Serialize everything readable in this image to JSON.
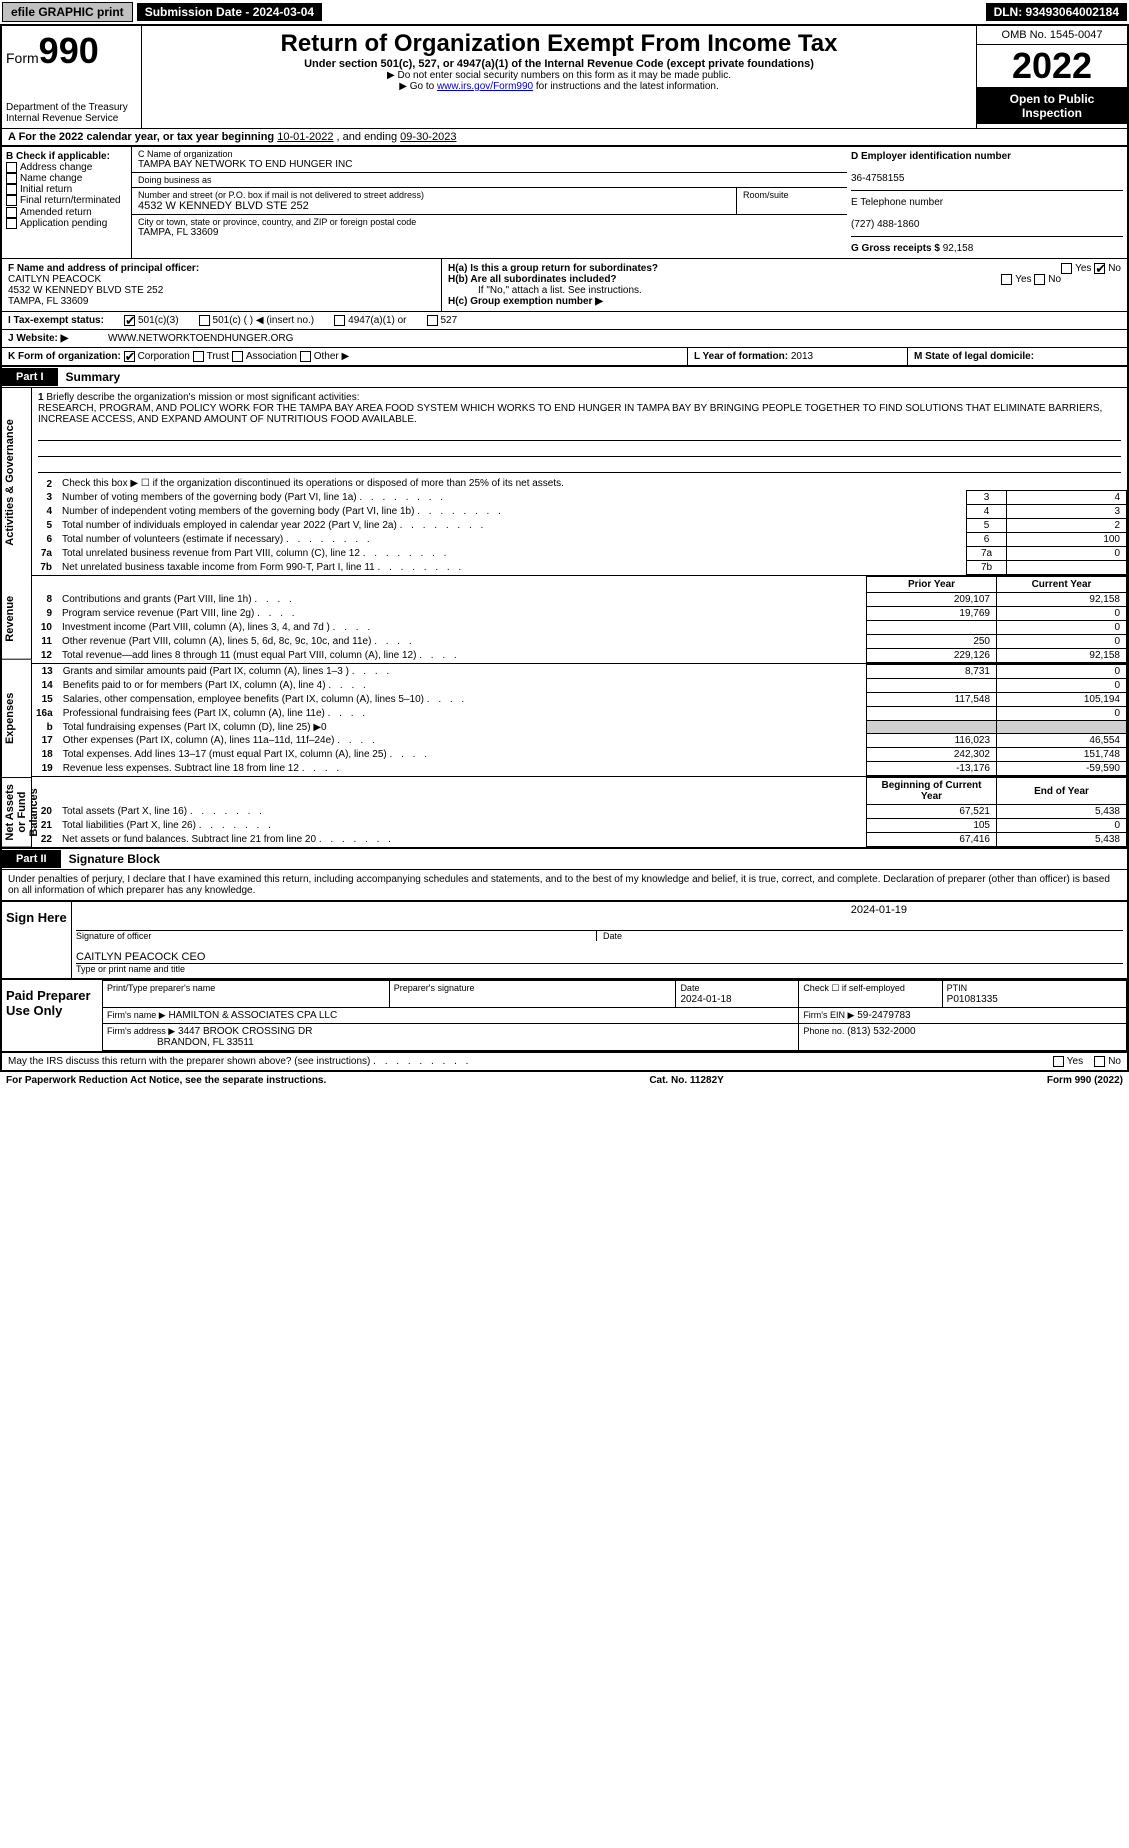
{
  "topbar": {
    "efile": "efile GRAPHIC print",
    "submission": "Submission Date - 2024-03-04",
    "dln": "DLN: 93493064002184"
  },
  "header": {
    "form_word": "Form",
    "form_number": "990",
    "dept": "Department of the Treasury",
    "irs": "Internal Revenue Service",
    "title": "Return of Organization Exempt From Income Tax",
    "subtitle": "Under section 501(c), 527, or 4947(a)(1) of the Internal Revenue Code (except private foundations)",
    "note1": "▶ Do not enter social security numbers on this form as it may be made public.",
    "note2_pre": "▶ Go to ",
    "note2_link": "www.irs.gov/Form990",
    "note2_post": " for instructions and the latest information.",
    "omb": "OMB No. 1545-0047",
    "year": "2022",
    "otp": "Open to Public Inspection"
  },
  "period": {
    "label_a": "A For the 2022 calendar year, or tax year beginning ",
    "begin": "10-01-2022",
    "mid": " , and ending ",
    "end": "09-30-2023"
  },
  "B": {
    "label": "B Check if applicable:",
    "items": [
      "Address change",
      "Name change",
      "Initial return",
      "Final return/terminated",
      "Amended return",
      "Application pending"
    ]
  },
  "C": {
    "name_label": "C Name of organization",
    "name": "TAMPA BAY NETWORK TO END HUNGER INC",
    "dba_label": "Doing business as",
    "dba": "",
    "street_label": "Number and street (or P.O. box if mail is not delivered to street address)",
    "room_label": "Room/suite",
    "street": "4532 W KENNEDY BLVD STE 252",
    "city_label": "City or town, state or province, country, and ZIP or foreign postal code",
    "city": "TAMPA, FL  33609"
  },
  "D": {
    "label": "D Employer identification number",
    "ein": "36-4758155"
  },
  "E": {
    "label": "E Telephone number",
    "phone": "(727) 488-1860"
  },
  "G": {
    "label": "G Gross receipts $",
    "amount": "92,158"
  },
  "F": {
    "label": "F Name and address of principal officer:",
    "name": "CAITLYN PEACOCK",
    "street": "4532 W KENNEDY BLVD STE 252",
    "city": "TAMPA, FL  33609"
  },
  "H": {
    "a": "H(a) Is this a group return for subordinates?",
    "b": "H(b) Are all subordinates included?",
    "b_note": "If \"No,\" attach a list. See instructions.",
    "c": "H(c) Group exemption number ▶",
    "yes": "Yes",
    "no": "No"
  },
  "I": {
    "label": "I Tax-exempt status:",
    "opts": [
      "501(c)(3)",
      "501(c) (  ) ◀ (insert no.)",
      "4947(a)(1) or",
      "527"
    ]
  },
  "J": {
    "label": "J Website: ▶",
    "url": "WWW.NETWORKTOENDHUNGER.ORG"
  },
  "K": {
    "label": "K Form of organization:",
    "opts": [
      "Corporation",
      "Trust",
      "Association",
      "Other ▶"
    ]
  },
  "L": {
    "label": "L Year of formation:",
    "val": "2013"
  },
  "M": {
    "label": "M State of legal domicile:",
    "val": ""
  },
  "part1": {
    "tab": "Part I",
    "title": "Summary"
  },
  "mission": {
    "num": "1",
    "label": "Briefly describe the organization's mission or most significant activities:",
    "text": "RESEARCH, PROGRAM, AND POLICY WORK FOR THE TAMPA BAY AREA FOOD SYSTEM WHICH WORKS TO END HUNGER IN TAMPA BAY BY BRINGING PEOPLE TOGETHER TO FIND SOLUTIONS THAT ELIMINATE BARRIERS, INCREASE ACCESS, AND EXPAND AMOUNT OF NUTRITIOUS FOOD AVAILABLE."
  },
  "gov": {
    "section_label": "Activities & Governance",
    "line2": "Check this box ▶ ☐ if the organization discontinued its operations or disposed of more than 25% of its net assets.",
    "lines": [
      {
        "n": "3",
        "t": "Number of voting members of the governing body (Part VI, line 1a)",
        "box": "3",
        "v": "4"
      },
      {
        "n": "4",
        "t": "Number of independent voting members of the governing body (Part VI, line 1b)",
        "box": "4",
        "v": "3"
      },
      {
        "n": "5",
        "t": "Total number of individuals employed in calendar year 2022 (Part V, line 2a)",
        "box": "5",
        "v": "2"
      },
      {
        "n": "6",
        "t": "Total number of volunteers (estimate if necessary)",
        "box": "6",
        "v": "100"
      },
      {
        "n": "7a",
        "t": "Total unrelated business revenue from Part VIII, column (C), line 12",
        "box": "7a",
        "v": "0"
      },
      {
        "n": "7b",
        "t": "Net unrelated business taxable income from Form 990-T, Part I, line 11",
        "box": "7b",
        "v": ""
      }
    ]
  },
  "revenue": {
    "section_label": "Revenue",
    "py_label": "Prior Year",
    "cy_label": "Current Year",
    "lines": [
      {
        "n": "8",
        "t": "Contributions and grants (Part VIII, line 1h)",
        "py": "209,107",
        "cy": "92,158"
      },
      {
        "n": "9",
        "t": "Program service revenue (Part VIII, line 2g)",
        "py": "19,769",
        "cy": "0"
      },
      {
        "n": "10",
        "t": "Investment income (Part VIII, column (A), lines 3, 4, and 7d )",
        "py": "",
        "cy": "0"
      },
      {
        "n": "11",
        "t": "Other revenue (Part VIII, column (A), lines 5, 6d, 8c, 9c, 10c, and 11e)",
        "py": "250",
        "cy": "0"
      },
      {
        "n": "12",
        "t": "Total revenue—add lines 8 through 11 (must equal Part VIII, column (A), line 12)",
        "py": "229,126",
        "cy": "92,158"
      }
    ]
  },
  "expenses": {
    "section_label": "Expenses",
    "lines": [
      {
        "n": "13",
        "t": "Grants and similar amounts paid (Part IX, column (A), lines 1–3 )",
        "py": "8,731",
        "cy": "0"
      },
      {
        "n": "14",
        "t": "Benefits paid to or for members (Part IX, column (A), line 4)",
        "py": "",
        "cy": "0"
      },
      {
        "n": "15",
        "t": "Salaries, other compensation, employee benefits (Part IX, column (A), lines 5–10)",
        "py": "117,548",
        "cy": "105,194"
      },
      {
        "n": "16a",
        "t": "Professional fundraising fees (Part IX, column (A), line 11e)",
        "py": "",
        "cy": "0"
      },
      {
        "n": "b",
        "t": "Total fundraising expenses (Part IX, column (D), line 25) ▶0",
        "gray": true
      },
      {
        "n": "17",
        "t": "Other expenses (Part IX, column (A), lines 11a–11d, 11f–24e)",
        "py": "116,023",
        "cy": "46,554"
      },
      {
        "n": "18",
        "t": "Total expenses. Add lines 13–17 (must equal Part IX, column (A), line 25)",
        "py": "242,302",
        "cy": "151,748"
      },
      {
        "n": "19",
        "t": "Revenue less expenses. Subtract line 18 from line 12",
        "py": "-13,176",
        "cy": "-59,590"
      }
    ]
  },
  "netassets": {
    "section_label": "Net Assets or Fund Balances",
    "by_label": "Beginning of Current Year",
    "ey_label": "End of Year",
    "lines": [
      {
        "n": "20",
        "t": "Total assets (Part X, line 16)",
        "py": "67,521",
        "cy": "5,438"
      },
      {
        "n": "21",
        "t": "Total liabilities (Part X, line 26)",
        "py": "105",
        "cy": "0"
      },
      {
        "n": "22",
        "t": "Net assets or fund balances. Subtract line 21 from line 20",
        "py": "67,416",
        "cy": "5,438"
      }
    ]
  },
  "part2": {
    "tab": "Part II",
    "title": "Signature Block"
  },
  "sig": {
    "intro": "Under penalties of perjury, I declare that I have examined this return, including accompanying schedules and statements, and to the best of my knowledge and belief, it is true, correct, and complete. Declaration of preparer (other than officer) is based on all information of which preparer has any knowledge.",
    "sign_here": "Sign Here",
    "sig_officer": "Signature of officer",
    "date": "2024-01-19",
    "date_label": "Date",
    "name_title": "CAITLYN PEACOCK CEO",
    "type_label": "Type or print name and title"
  },
  "prep": {
    "label": "Paid Preparer Use Only",
    "print_label": "Print/Type preparer's name",
    "print": "",
    "sig_label": "Preparer's signature",
    "date_label": "Date",
    "date": "2024-01-18",
    "check_label": "Check ☐ if self-employed",
    "ptin_label": "PTIN",
    "ptin": "P01081335",
    "firm_name_label": "Firm's name ▶",
    "firm_name": "HAMILTON & ASSOCIATES CPA LLC",
    "firm_ein_label": "Firm's EIN ▶",
    "firm_ein": "59-2479783",
    "firm_addr_label": "Firm's address ▶",
    "firm_addr1": "3447 BROOK CROSSING DR",
    "firm_addr2": "BRANDON, FL  33511",
    "phone_label": "Phone no.",
    "phone": "(813) 532-2000"
  },
  "discuss": {
    "text": "May the IRS discuss this return with the preparer shown above? (see instructions)",
    "yes": "Yes",
    "no": "No"
  },
  "footer": {
    "left": "For Paperwork Reduction Act Notice, see the separate instructions.",
    "mid": "Cat. No. 11282Y",
    "right": "Form 990 (2022)"
  }
}
